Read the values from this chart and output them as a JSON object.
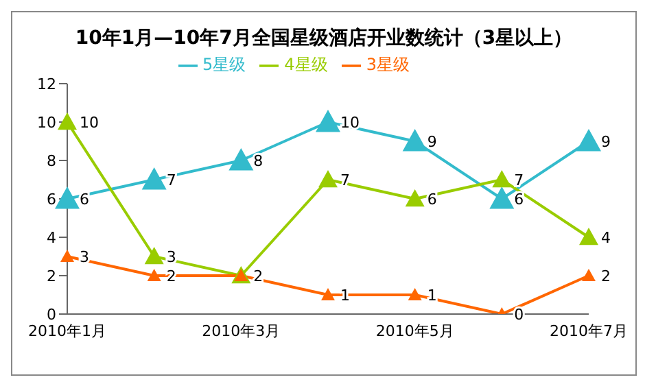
{
  "chart_data": {
    "type": "line",
    "title": "10年1月—10年7月全国星级酒店开业数统计（3星以上）",
    "categories": [
      "2010年1月",
      null,
      "2010年3月",
      null,
      "2010年5月",
      null,
      "2010年7月"
    ],
    "series": [
      {
        "name": "5星级",
        "color": "#33bbcc",
        "values": [
          6,
          7,
          8,
          10,
          9,
          6,
          9
        ]
      },
      {
        "name": "4星级",
        "color": "#99cc00",
        "values": [
          10,
          3,
          2,
          7,
          6,
          7,
          4
        ],
        "value_labels": [
          "10",
          "3",
          null,
          "7",
          "6",
          "7",
          "4"
        ]
      },
      {
        "name": "3星级",
        "color": "#ff6600",
        "values": [
          3,
          2,
          2,
          1,
          1,
          0,
          2
        ]
      }
    ],
    "ylim": [
      0,
      12
    ],
    "yticks": [
      0,
      2,
      4,
      6,
      8,
      10,
      12
    ],
    "grid": false,
    "legend": "top",
    "marker": "triangle",
    "line_style": "solid",
    "data_labels": true
  }
}
